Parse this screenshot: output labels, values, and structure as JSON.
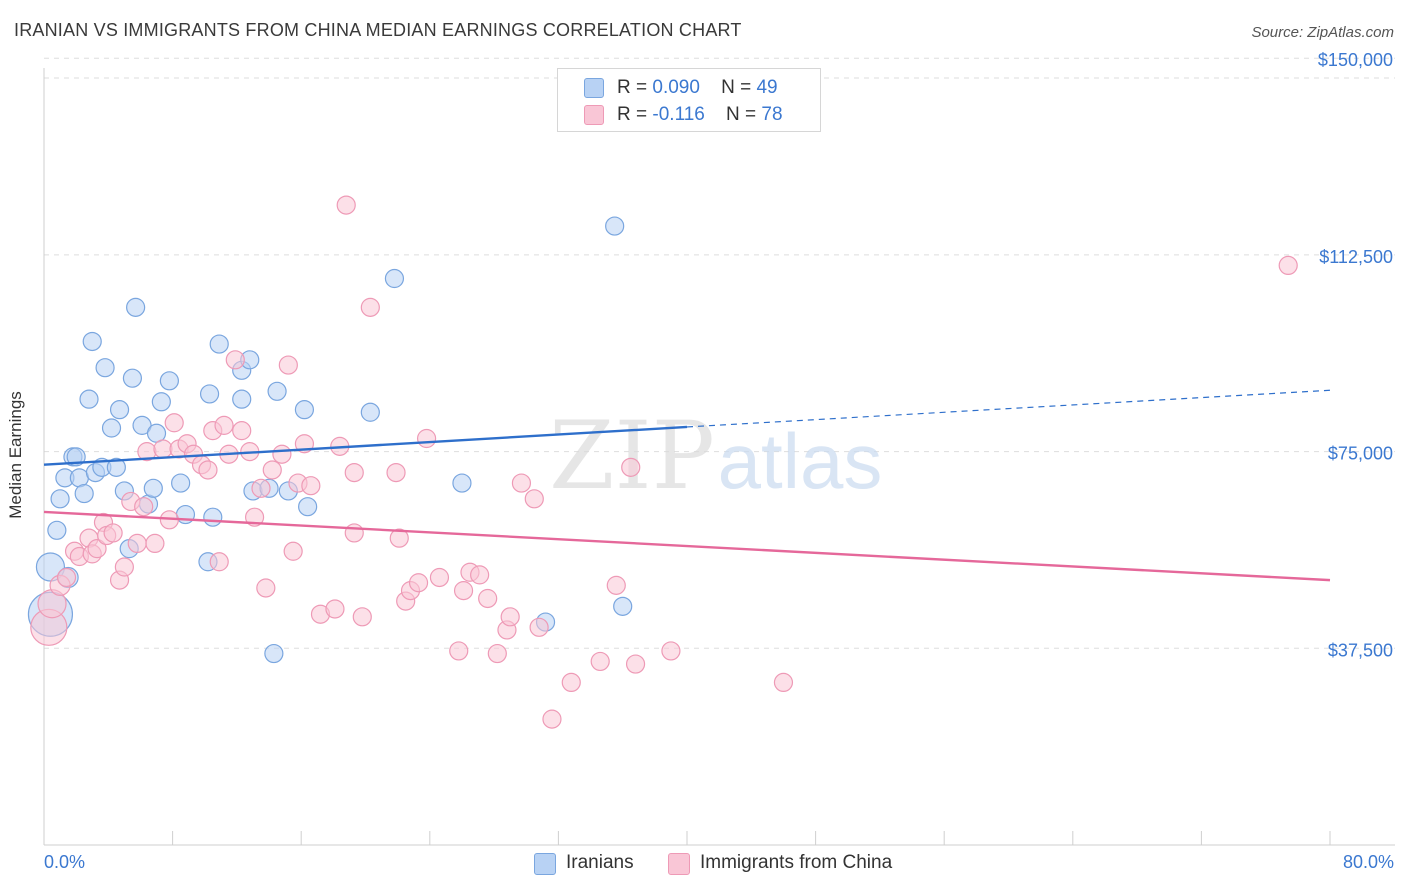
{
  "header": {
    "title": "IRANIAN VS IMMIGRANTS FROM CHINA MEDIAN EARNINGS CORRELATION CHART",
    "source": "Source: ZipAtlas.com"
  },
  "watermark": {
    "zip": "ZIP",
    "atlas": "atlas"
  },
  "legend": {
    "iranians": {
      "r_label": "R =",
      "r_value": "0.090",
      "n_label": "N =",
      "n_value": "49"
    },
    "china": {
      "r_label": "R =",
      "r_value": "-0.116",
      "n_label": "N =",
      "n_value": "78"
    }
  },
  "bottom_legend": {
    "iranians": "Iranians",
    "china": "Immigrants from China"
  },
  "x_axis": {
    "min_label": "0.0%",
    "max_label": "80.0%"
  },
  "chart_data": {
    "type": "scatter",
    "xlabel": "",
    "ylabel": "Median Earnings",
    "xlim": [
      0,
      80
    ],
    "ylim": [
      0,
      155000
    ],
    "y_ticks": [
      37500,
      75000,
      112500,
      150000
    ],
    "y_tick_labels": [
      "$37,500",
      "$75,000",
      "$112,500",
      "$150,000"
    ],
    "grid": true,
    "legend_position": "top-center",
    "colors": {
      "iranians_fill": "#b8d2f4",
      "iranians_stroke": "#7aa6df",
      "iranians_line": "#2e6fcb",
      "china_fill": "#f9c6d6",
      "china_stroke": "#ee9ab6",
      "china_line": "#e5689a",
      "tick_label": "#3b78d0",
      "grid": "#dddddd"
    },
    "series": [
      {
        "name": "Iranians",
        "trend": {
          "x": [
            0,
            40
          ],
          "y": [
            72500,
            79700
          ],
          "dashed_to": [
            80,
            86700
          ]
        },
        "points": [
          [
            0.4,
            53000,
            14
          ],
          [
            0.4,
            44000,
            22
          ],
          [
            0.8,
            60000,
            9
          ],
          [
            1.0,
            66000,
            9
          ],
          [
            1.3,
            70000,
            9
          ],
          [
            1.5,
            51000,
            10
          ],
          [
            1.8,
            74000,
            9
          ],
          [
            2.0,
            74000,
            9
          ],
          [
            2.2,
            70000,
            9
          ],
          [
            2.5,
            67000,
            9
          ],
          [
            2.8,
            85000,
            9
          ],
          [
            3.0,
            96000,
            9
          ],
          [
            3.2,
            71000,
            9
          ],
          [
            3.6,
            72000,
            9
          ],
          [
            3.8,
            91000,
            9
          ],
          [
            4.2,
            79500,
            9
          ],
          [
            4.5,
            72000,
            9
          ],
          [
            4.7,
            83000,
            9
          ],
          [
            5.0,
            67500,
            9
          ],
          [
            5.3,
            56500,
            9
          ],
          [
            5.5,
            89000,
            9
          ],
          [
            5.7,
            102500,
            9
          ],
          [
            6.1,
            80000,
            9
          ],
          [
            6.5,
            65000,
            9
          ],
          [
            6.8,
            68000,
            9
          ],
          [
            7.0,
            78500,
            9
          ],
          [
            7.3,
            84500,
            9
          ],
          [
            7.8,
            88500,
            9
          ],
          [
            8.5,
            69000,
            9
          ],
          [
            8.8,
            63000,
            9
          ],
          [
            10.2,
            54000,
            9
          ],
          [
            10.3,
            86000,
            9
          ],
          [
            10.5,
            62500,
            9
          ],
          [
            10.9,
            95500,
            9
          ],
          [
            12.3,
            90500,
            9
          ],
          [
            12.3,
            85000,
            9
          ],
          [
            12.8,
            92500,
            9
          ],
          [
            13.0,
            67500,
            9
          ],
          [
            14.3,
            36500,
            9
          ],
          [
            14.5,
            86500,
            9
          ],
          [
            14.0,
            68000,
            9
          ],
          [
            15.2,
            67500,
            9
          ],
          [
            16.2,
            83000,
            9
          ],
          [
            16.4,
            64500,
            9
          ],
          [
            20.3,
            82500,
            9
          ],
          [
            21.8,
            108000,
            9
          ],
          [
            26.0,
            69000,
            9
          ],
          [
            31.2,
            42500,
            9
          ],
          [
            35.5,
            118000,
            9
          ],
          [
            36.0,
            45500,
            9
          ]
        ]
      },
      {
        "name": "Immigrants from China",
        "trend": {
          "x": [
            0,
            80
          ],
          "y": [
            63500,
            50500
          ]
        },
        "points": [
          [
            0.3,
            41500,
            18
          ],
          [
            0.5,
            46000,
            14
          ],
          [
            1.0,
            49500,
            10
          ],
          [
            1.4,
            51000,
            9
          ],
          [
            1.9,
            56000,
            9
          ],
          [
            2.2,
            55000,
            9
          ],
          [
            2.8,
            58500,
            9
          ],
          [
            3.0,
            55500,
            9
          ],
          [
            3.3,
            56500,
            9
          ],
          [
            3.7,
            61500,
            9
          ],
          [
            3.9,
            59000,
            9
          ],
          [
            4.3,
            59500,
            9
          ],
          [
            4.7,
            50500,
            9
          ],
          [
            5.0,
            53000,
            9
          ],
          [
            5.4,
            65500,
            9
          ],
          [
            5.8,
            57500,
            9
          ],
          [
            6.2,
            64500,
            9
          ],
          [
            6.4,
            75000,
            9
          ],
          [
            6.9,
            57500,
            9
          ],
          [
            7.4,
            75500,
            9
          ],
          [
            7.8,
            62000,
            9
          ],
          [
            8.1,
            80500,
            9
          ],
          [
            8.4,
            75500,
            9
          ],
          [
            8.9,
            76500,
            9
          ],
          [
            9.3,
            74500,
            9
          ],
          [
            9.8,
            72500,
            9
          ],
          [
            10.2,
            71500,
            9
          ],
          [
            10.5,
            79000,
            9
          ],
          [
            10.9,
            54000,
            9
          ],
          [
            11.2,
            80000,
            9
          ],
          [
            11.5,
            74500,
            9
          ],
          [
            11.9,
            92500,
            9
          ],
          [
            12.3,
            79000,
            9
          ],
          [
            12.8,
            75000,
            9
          ],
          [
            13.1,
            62500,
            9
          ],
          [
            13.5,
            68000,
            9
          ],
          [
            13.8,
            49000,
            9
          ],
          [
            14.2,
            71500,
            9
          ],
          [
            14.8,
            74500,
            9
          ],
          [
            15.2,
            91500,
            9
          ],
          [
            15.5,
            56000,
            9
          ],
          [
            15.8,
            69000,
            9
          ],
          [
            16.2,
            76500,
            9
          ],
          [
            16.6,
            68500,
            9
          ],
          [
            17.2,
            44000,
            9
          ],
          [
            18.1,
            45000,
            9
          ],
          [
            18.4,
            76000,
            9
          ],
          [
            18.8,
            122000,
            9
          ],
          [
            19.3,
            71000,
            9
          ],
          [
            19.3,
            59500,
            9
          ],
          [
            19.8,
            43500,
            9
          ],
          [
            20.3,
            102500,
            9
          ],
          [
            21.9,
            71000,
            9
          ],
          [
            22.1,
            58500,
            9
          ],
          [
            22.5,
            46500,
            9
          ],
          [
            22.8,
            48500,
            9
          ],
          [
            23.3,
            50000,
            9
          ],
          [
            23.8,
            77500,
            9
          ],
          [
            24.6,
            51000,
            9
          ],
          [
            25.8,
            37000,
            9
          ],
          [
            26.1,
            48500,
            9
          ],
          [
            26.5,
            52000,
            9
          ],
          [
            27.1,
            51500,
            9
          ],
          [
            27.6,
            47000,
            9
          ],
          [
            28.2,
            36500,
            9
          ],
          [
            28.8,
            41000,
            9
          ],
          [
            29.0,
            43500,
            9
          ],
          [
            29.7,
            69000,
            9
          ],
          [
            30.5,
            66000,
            9
          ],
          [
            30.8,
            41500,
            9
          ],
          [
            31.6,
            24000,
            9
          ],
          [
            32.8,
            31000,
            9
          ],
          [
            34.6,
            35000,
            9
          ],
          [
            35.6,
            49500,
            9
          ],
          [
            36.5,
            72000,
            9
          ],
          [
            36.8,
            34500,
            9
          ],
          [
            39.0,
            37000,
            9
          ],
          [
            46.0,
            31000,
            9
          ],
          [
            77.4,
            110500,
            9
          ]
        ]
      }
    ]
  }
}
